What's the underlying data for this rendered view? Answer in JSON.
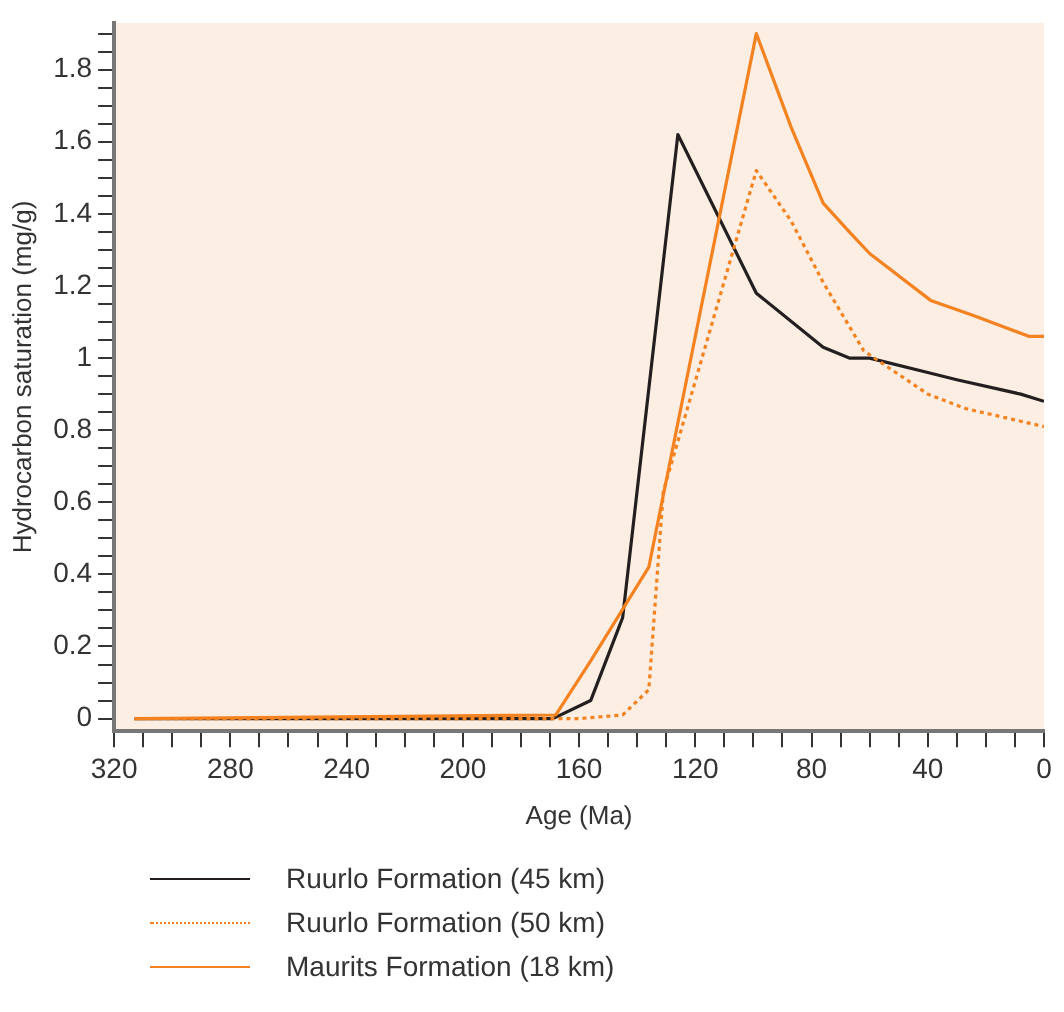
{
  "chart_data": {
    "type": "line",
    "xlabel": "Age (Ma)",
    "ylabel": "Hydrocarbon saturation (mg/g)",
    "xlim": [
      320,
      0
    ],
    "xticks": [
      320,
      {
        "value": 310,
        "label": null
      },
      {
        "value": 300,
        "label": null
      },
      {
        "value": 290,
        "label": null
      },
      280,
      {
        "value": 270,
        "label": null
      },
      {
        "value": 260,
        "label": null
      },
      {
        "value": 250,
        "label": null
      },
      240,
      {
        "value": 230,
        "label": null
      },
      {
        "value": 220,
        "label": null
      },
      {
        "value": 210,
        "label": null
      },
      200,
      {
        "value": 190,
        "label": null
      },
      {
        "value": 180,
        "label": null
      },
      {
        "value": 170,
        "label": null
      },
      160,
      {
        "value": 150,
        "label": null
      },
      {
        "value": 140,
        "label": null
      },
      {
        "value": 130,
        "label": null
      },
      120,
      {
        "value": 110,
        "label": null
      },
      {
        "value": 100,
        "label": null
      },
      {
        "value": 90,
        "label": null
      },
      80,
      {
        "value": 70,
        "label": null
      },
      {
        "value": 60,
        "label": null
      },
      {
        "value": 50,
        "label": null
      },
      40,
      {
        "value": 30,
        "label": null
      },
      {
        "value": 20,
        "label": null
      },
      {
        "value": 10,
        "label": null
      },
      0
    ],
    "ylim": [
      -0.035,
      1.93
    ],
    "yticks": [
      0,
      {
        "value": 0.05,
        "label": null
      },
      {
        "value": 0.1,
        "label": null
      },
      {
        "value": 0.15,
        "label": null
      },
      0.2,
      {
        "value": 0.25,
        "label": null
      },
      {
        "value": 0.3,
        "label": null
      },
      {
        "value": 0.35,
        "label": null
      },
      0.4,
      {
        "value": 0.45,
        "label": null
      },
      {
        "value": 0.5,
        "label": null
      },
      {
        "value": 0.55,
        "label": null
      },
      0.6,
      {
        "value": 0.65,
        "label": null
      },
      {
        "value": 0.7,
        "label": null
      },
      {
        "value": 0.75,
        "label": null
      },
      0.8,
      {
        "value": 0.85,
        "label": null
      },
      {
        "value": 0.9,
        "label": null
      },
      {
        "value": 0.95,
        "label": null
      },
      1,
      {
        "value": 1.05,
        "label": null
      },
      {
        "value": 1.1,
        "label": null
      },
      {
        "value": 1.15,
        "label": null
      },
      1.2,
      {
        "value": 1.25,
        "label": null
      },
      {
        "value": 1.3,
        "label": null
      },
      {
        "value": 1.35,
        "label": null
      },
      1.4,
      {
        "value": 1.45,
        "label": null
      },
      {
        "value": 1.5,
        "label": null
      },
      {
        "value": 1.55,
        "label": null
      },
      1.6,
      {
        "value": 1.65,
        "label": null
      },
      {
        "value": 1.7,
        "label": null
      },
      {
        "value": 1.75,
        "label": null
      },
      1.8,
      {
        "value": 1.85,
        "label": null
      },
      {
        "value": 1.9,
        "label": null
      }
    ],
    "grid": false,
    "legend": "bottom",
    "marker": "none",
    "series": [
      {
        "name": "Ruurlo Formation (45 km)",
        "color": "#231f20",
        "line_style": "solid",
        "x": [
          313,
          169,
          156,
          145,
          126,
          99,
          76,
          67,
          60,
          40,
          30,
          8,
          0
        ],
        "values": [
          0,
          0,
          0.05,
          0.28,
          1.62,
          1.18,
          1.03,
          1.0,
          1.0,
          0.96,
          0.94,
          0.9,
          0.88
        ]
      },
      {
        "name": "Ruurlo Formation (50 km)",
        "color": "#f58220",
        "line_style": "dotted",
        "x": [
          313,
          160,
          145,
          136,
          131,
          99,
          87,
          76,
          62,
          40,
          27,
          0
        ],
        "values": [
          0,
          0,
          0.01,
          0.08,
          0.63,
          1.52,
          1.38,
          1.21,
          1.02,
          0.9,
          0.86,
          0.81
        ]
      },
      {
        "name": "Maurits Formation (18 km)",
        "color": "#f58220",
        "line_style": "solid",
        "x": [
          313,
          168,
          156,
          136,
          99,
          87,
          76,
          67,
          60,
          39,
          25,
          5,
          0
        ],
        "values": [
          0,
          0.01,
          0.16,
          0.42,
          1.9,
          1.64,
          1.43,
          1.35,
          1.29,
          1.16,
          1.12,
          1.06,
          1.06
        ]
      }
    ]
  }
}
